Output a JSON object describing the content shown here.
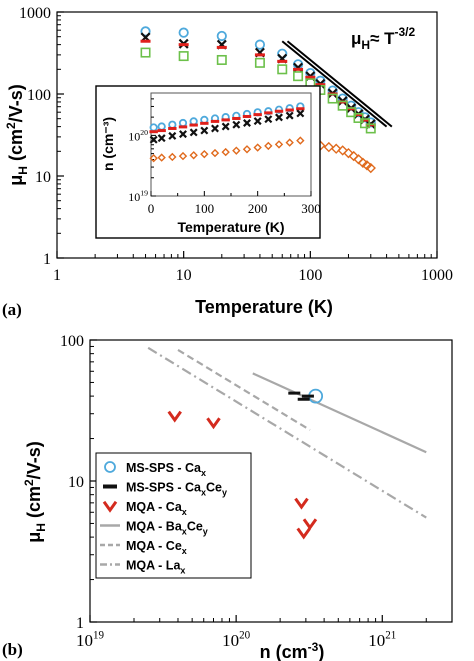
{
  "panel_labels": [
    "(a)",
    "(b)"
  ],
  "colors": {
    "cax_circle": "#4ea9dc",
    "cax_cross": "#111111",
    "red_dash": "#e0201b",
    "green_square": "#6cc04a",
    "orange_diamond": "#e06a1d",
    "gray_line": "#a8a8a8",
    "v_mark": "#d42b1e"
  },
  "chart_data": [
    {
      "id": "a-main",
      "type": "scatter",
      "log_x": true,
      "log_y": true,
      "xlim": [
        1,
        1000
      ],
      "ylim": [
        1,
        1000
      ],
      "xlabel": "Temperature (K)",
      "ylabel": "μH (cm²/V-s)",
      "x_ticks": [
        {
          "value": 1,
          "label": "1"
        },
        {
          "value": 10,
          "label": "10"
        },
        {
          "value": 100,
          "label": "100"
        },
        {
          "value": 1000,
          "label": "1000"
        }
      ],
      "y_ticks": [
        {
          "value": 1,
          "label": "1"
        },
        {
          "value": 10,
          "label": "10"
        },
        {
          "value": 100,
          "label": "100"
        },
        {
          "value": 1000,
          "label": "1000"
        }
      ],
      "annotation": {
        "base": "μ",
        "sub": "H",
        "mid": "≈ T",
        "sup": "-3/2"
      },
      "guide_lines": [
        {
          "from": [
            60,
            440
          ],
          "to": [
            400,
            40
          ]
        },
        {
          "from": [
            66,
            440
          ],
          "to": [
            440,
            40
          ]
        }
      ],
      "series": [
        {
          "marker": "circle",
          "color_key": "cax_circle",
          "x": [
            5,
            10,
            20,
            40,
            60,
            80,
            100,
            120,
            150,
            180,
            210,
            240,
            270,
            300
          ],
          "y": [
            580,
            560,
            510,
            400,
            310,
            230,
            180,
            145,
            110,
            88,
            72,
            60,
            52,
            45
          ]
        },
        {
          "marker": "cross",
          "color_key": "cax_cross",
          "x": [
            5,
            10,
            20,
            40,
            60,
            80,
            100,
            120,
            150,
            180,
            210,
            240,
            270,
            300
          ],
          "y": [
            490,
            410,
            400,
            320,
            270,
            210,
            165,
            133,
            102,
            82,
            67,
            57,
            49,
            43
          ]
        },
        {
          "marker": "dash",
          "color_key": "red_dash",
          "x": [
            5,
            10,
            20,
            40,
            60,
            80,
            100,
            120,
            150,
            180,
            210,
            240,
            270,
            300
          ],
          "y": [
            440,
            400,
            370,
            300,
            250,
            200,
            160,
            130,
            100,
            80,
            66,
            56,
            48,
            42
          ]
        },
        {
          "marker": "square",
          "color_key": "green_square",
          "x": [
            5,
            10,
            20,
            40,
            60,
            80,
            100,
            120,
            150,
            180,
            210,
            240,
            270,
            300
          ],
          "y": [
            320,
            290,
            260,
            240,
            200,
            165,
            135,
            112,
            88,
            72,
            60,
            51,
            44,
            38
          ]
        },
        {
          "marker": "diamond",
          "color_key": "orange_diamond",
          "x": [
            100,
            120,
            140,
            160,
            180,
            200,
            220,
            240,
            260,
            280,
            300
          ],
          "y": [
            24,
            23.5,
            22.5,
            21.5,
            20.5,
            19,
            17.5,
            16,
            14.5,
            13.5,
            12.5
          ]
        }
      ]
    },
    {
      "id": "a-inset",
      "type": "scatter",
      "log_x": false,
      "log_y": true,
      "xlim": [
        0,
        300
      ],
      "ylim": [
        1e+19,
        5e+20
      ],
      "xlabel": "Temperature (K)",
      "ylabel": "n (cm⁻³)",
      "x_ticks": [
        {
          "value": 0,
          "label": "0"
        },
        {
          "value": 100,
          "label": "100"
        },
        {
          "value": 200,
          "label": "200"
        },
        {
          "value": 300,
          "label": "300"
        }
      ],
      "y_ticks": [
        {
          "value": 1e+19,
          "base": "10",
          "exp": "19"
        },
        {
          "value": 1e+20,
          "base": "10",
          "exp": "20"
        }
      ],
      "series": [
        {
          "marker": "circle",
          "color_key": "cax_circle",
          "x": [
            5,
            20,
            40,
            60,
            80,
            100,
            120,
            140,
            160,
            180,
            200,
            220,
            240,
            260,
            280
          ],
          "y": [
            1.35e+20,
            1.4e+20,
            1.5e+20,
            1.6e+20,
            1.7e+20,
            1.8e+20,
            1.9e+20,
            2e+20,
            2.1e+20,
            2.25e+20,
            2.4e+20,
            2.5e+20,
            2.65e+20,
            2.8e+20,
            3e+20
          ]
        },
        {
          "marker": "dash",
          "color_key": "red_dash",
          "x": [
            5,
            20,
            40,
            60,
            80,
            100,
            120,
            140,
            160,
            180,
            200,
            220,
            240,
            260,
            280
          ],
          "y": [
            1.15e+20,
            1.2e+20,
            1.3e+20,
            1.38e+20,
            1.48e+20,
            1.58e+20,
            1.7e+20,
            1.8e+20,
            1.9e+20,
            2.05e+20,
            2.2e+20,
            2.35e+20,
            2.5e+20,
            2.62e+20,
            2.75e+20
          ]
        },
        {
          "marker": "cross",
          "color_key": "cax_cross",
          "x": [
            5,
            20,
            40,
            60,
            80,
            100,
            120,
            140,
            160,
            180,
            200,
            220,
            240,
            260,
            280
          ],
          "y": [
            8.5e+19,
            9e+19,
            9.8e+19,
            1.05e+20,
            1.12e+20,
            1.2e+20,
            1.3e+20,
            1.4e+20,
            1.5e+20,
            1.6e+20,
            1.72e+20,
            1.85e+20,
            1.98e+20,
            2.12e+20,
            2.3e+20
          ]
        },
        {
          "marker": "diamond",
          "color_key": "orange_diamond",
          "x": [
            5,
            20,
            40,
            60,
            80,
            100,
            120,
            140,
            160,
            180,
            200,
            220,
            240,
            260,
            280
          ],
          "y": [
            4.2e+19,
            4.3e+19,
            4.4e+19,
            4.55e+19,
            4.7e+19,
            4.9e+19,
            5.1e+19,
            5.3e+19,
            5.6e+19,
            5.9e+19,
            6.3e+19,
            6.7e+19,
            7.1e+19,
            7.6e+19,
            8.2e+19
          ]
        }
      ]
    },
    {
      "id": "b-main",
      "type": "scatter",
      "log_x": true,
      "log_y": true,
      "xlim": [
        1e+19,
        3e+21
      ],
      "ylim": [
        1,
        100
      ],
      "xlabel": "n (cm⁻³)",
      "ylabel": "μH (cm²/V-s)",
      "x_ticks": [
        {
          "value": 1e+19,
          "base": "10",
          "exp": "19"
        },
        {
          "value": 1e+20,
          "base": "10",
          "exp": "20"
        },
        {
          "value": 1e+21,
          "base": "10",
          "exp": "21"
        }
      ],
      "y_ticks": [
        {
          "value": 1,
          "label": "1"
        },
        {
          "value": 10,
          "label": "10"
        },
        {
          "value": 100,
          "label": "100"
        }
      ],
      "series": [
        {
          "name": "MS-SPS - Cax",
          "marker": "circle",
          "color_key": "cax_circle",
          "x": [
            3.5e+20
          ],
          "y": [
            40
          ]
        },
        {
          "name": "MS-SPS - CaxCey",
          "marker": "dash",
          "color_key": "cax_cross",
          "x": [
            2.5e+20,
            2.9e+20,
            3.1e+20
          ],
          "y": [
            42,
            38,
            40
          ]
        },
        {
          "name": "MQA - Cax",
          "marker": "check",
          "color_key": "v_mark",
          "x": [
            3.8e+19,
            7e+19,
            2.8e+20,
            3.2e+20,
            2.9e+20
          ],
          "y": [
            29,
            26,
            7,
            5,
            4.3
          ]
        },
        {
          "name": "MQA - BaxCey",
          "line": "solid",
          "color_key": "gray_line",
          "x": [
            1.3e+20,
            2e+21
          ],
          "y": [
            58,
            16
          ]
        },
        {
          "name": "MQA - Cex",
          "line": "dashed",
          "color_key": "gray_line",
          "x": [
            4e+19,
            3.2e+20
          ],
          "y": [
            85,
            23
          ]
        },
        {
          "name": "MQA - Lax",
          "line": "dashdot",
          "color_key": "gray_line",
          "x": [
            2.5e+19,
            2e+21
          ],
          "y": [
            88,
            5.5
          ]
        }
      ],
      "legend": {
        "placement": "left",
        "entries": [
          {
            "marker": "circle",
            "color_key": "cax_circle",
            "label": "MS-SPS - Ca",
            "sub": "x"
          },
          {
            "marker": "bar",
            "color_key": "cax_cross",
            "label": "MS-SPS - Ca",
            "sub": "x",
            "mid": "Ce",
            "sub2": "y"
          },
          {
            "marker": "check",
            "color_key": "v_mark",
            "label": "MQA  - Ca",
            "sub": "x"
          },
          {
            "marker": "line-solid",
            "color_key": "gray_line",
            "label": "MQA  - Ba",
            "sub": "x",
            "mid": "Ce",
            "sub2": "y"
          },
          {
            "marker": "line-dashed",
            "color_key": "gray_line",
            "label": "MQA  - Ce",
            "sub": "x"
          },
          {
            "marker": "line-dashdot",
            "color_key": "gray_line",
            "label": "MQA  - La",
            "sub": "x"
          }
        ]
      }
    }
  ]
}
